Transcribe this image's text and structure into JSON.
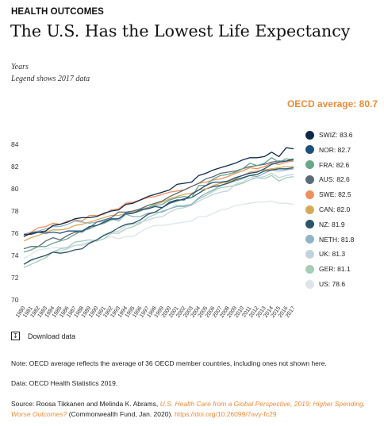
{
  "header": {
    "kicker": "HEALTH OUTCOMES",
    "title": "The U.S. Has the Lowest Life Expectancy",
    "unit": "Years",
    "legend_note": "Legend shows 2017 data"
  },
  "oecd_label": "OECD average: 80.7",
  "chart_data": {
    "type": "line",
    "title": "The U.S. Has the Lowest Life Expectancy",
    "ylabel": "Years",
    "xlabel": "",
    "ylim": [
      70,
      85
    ],
    "yticks": [
      "84",
      "82",
      "80",
      "78",
      "76",
      "74",
      "72",
      "70"
    ],
    "x": [
      "1980",
      "1981",
      "1982",
      "1983",
      "1984",
      "1985",
      "1986",
      "1987",
      "1988",
      "1989",
      "1990",
      "1991",
      "1992",
      "1993",
      "1994",
      "1995",
      "1996",
      "1997",
      "1998",
      "1999",
      "2000",
      "2001",
      "2002",
      "2003",
      "2004",
      "2005",
      "2006",
      "2007",
      "2008",
      "2009",
      "2010",
      "2011",
      "2012",
      "2013",
      "2014",
      "2015",
      "2016",
      "2017"
    ],
    "grid": false,
    "legend_position": "right",
    "series": [
      {
        "name": "SWIZ",
        "label": "SWIZ: 83.6",
        "color": "#0f2a47",
        "values": [
          75.7,
          76.0,
          76.1,
          76.2,
          76.7,
          76.8,
          77.0,
          77.3,
          77.4,
          77.4,
          77.5,
          77.8,
          78.0,
          78.1,
          78.6,
          78.7,
          79.0,
          79.3,
          79.5,
          79.7,
          79.9,
          80.4,
          80.5,
          80.6,
          81.2,
          81.4,
          81.7,
          81.9,
          82.1,
          82.3,
          82.6,
          82.8,
          82.8,
          82.9,
          83.3,
          82.9,
          83.7,
          83.6
        ]
      },
      {
        "name": "NOR",
        "label": "NOR: 82.7",
        "color": "#1e4f7b",
        "values": [
          75.9,
          75.9,
          76.1,
          76.0,
          76.1,
          76.0,
          76.2,
          76.2,
          76.2,
          76.6,
          76.7,
          77.0,
          77.3,
          77.3,
          77.8,
          77.8,
          78.1,
          78.2,
          78.4,
          78.3,
          78.8,
          79.0,
          79.0,
          79.5,
          79.9,
          80.3,
          80.6,
          80.6,
          80.7,
          81.0,
          81.2,
          81.4,
          81.5,
          81.8,
          82.2,
          82.4,
          82.5,
          82.7
        ]
      },
      {
        "name": "FRA",
        "label": "FRA: 82.6",
        "color": "#6aa688",
        "values": [
          74.3,
          74.5,
          74.8,
          74.8,
          75.1,
          75.3,
          75.5,
          75.9,
          76.2,
          76.4,
          76.7,
          76.9,
          77.2,
          77.3,
          77.7,
          77.8,
          78.0,
          78.3,
          78.5,
          78.6,
          79.0,
          79.2,
          79.3,
          79.2,
          80.3,
          80.3,
          80.9,
          81.2,
          81.3,
          81.5,
          81.8,
          82.3,
          82.1,
          82.3,
          82.8,
          82.4,
          82.7,
          82.6
        ]
      },
      {
        "name": "AUS",
        "label": "AUS: 82.6",
        "color": "#5c6b7a",
        "values": [
          74.6,
          74.8,
          74.8,
          75.3,
          75.6,
          75.4,
          75.8,
          76.1,
          76.1,
          76.5,
          77.0,
          77.2,
          77.4,
          77.9,
          77.9,
          78.0,
          78.2,
          78.5,
          78.7,
          78.9,
          79.3,
          79.6,
          79.9,
          80.2,
          80.5,
          80.9,
          81.1,
          81.4,
          81.5,
          81.6,
          81.8,
          82.0,
          82.1,
          82.2,
          82.4,
          82.5,
          82.5,
          82.6
        ]
      },
      {
        "name": "SWE",
        "label": "SWE: 82.5",
        "color": "#ef8f5e",
        "values": [
          75.8,
          76.1,
          76.5,
          76.6,
          76.9,
          76.8,
          77.1,
          77.2,
          77.1,
          77.6,
          77.6,
          77.7,
          78.1,
          78.2,
          78.7,
          78.8,
          79.0,
          79.2,
          79.3,
          79.5,
          79.7,
          79.8,
          79.9,
          80.2,
          80.5,
          80.6,
          80.8,
          80.9,
          81.1,
          81.4,
          81.6,
          81.9,
          81.8,
          82.0,
          82.3,
          82.2,
          82.4,
          82.5
        ]
      },
      {
        "name": "CAN",
        "label": "CAN: 82.0",
        "color": "#d6a959",
        "values": [
          75.3,
          75.6,
          75.8,
          76.1,
          76.3,
          76.3,
          76.4,
          76.7,
          76.8,
          77.0,
          77.2,
          77.4,
          77.6,
          77.6,
          77.8,
          77.9,
          78.2,
          78.3,
          78.6,
          78.8,
          79.1,
          79.3,
          79.5,
          79.6,
          79.9,
          80.0,
          80.3,
          80.5,
          80.6,
          80.9,
          81.2,
          81.5,
          81.6,
          81.7,
          81.8,
          81.9,
          82.0,
          82.0
        ]
      },
      {
        "name": "NZ",
        "label": "NZ: 81.9",
        "color": "#2c5466",
        "values": [
          73.2,
          73.6,
          73.8,
          74.0,
          74.3,
          74.2,
          74.3,
          74.5,
          74.6,
          75.1,
          75.4,
          75.8,
          76.1,
          76.5,
          76.8,
          76.9,
          77.2,
          77.7,
          77.9,
          78.3,
          78.7,
          78.9,
          79.1,
          79.2,
          79.6,
          80.0,
          80.2,
          80.3,
          80.5,
          80.8,
          81.0,
          81.2,
          81.3,
          81.6,
          81.7,
          81.8,
          81.8,
          81.9
        ]
      },
      {
        "name": "NETH",
        "label": "NETH: 81.8",
        "color": "#8fb3c8",
        "values": [
          75.9,
          76.1,
          76.2,
          76.4,
          76.6,
          76.6,
          76.8,
          77.1,
          77.0,
          76.9,
          77.0,
          77.1,
          77.3,
          77.1,
          77.7,
          77.5,
          77.5,
          77.8,
          77.9,
          77.9,
          78.2,
          78.4,
          78.4,
          78.6,
          79.2,
          79.6,
          79.9,
          80.3,
          80.5,
          80.7,
          80.9,
          81.2,
          81.1,
          81.4,
          81.7,
          81.6,
          81.7,
          81.8
        ]
      },
      {
        "name": "UK",
        "label": "UK: 81.3",
        "color": "#c3d3dc",
        "values": [
          73.2,
          73.5,
          73.8,
          74.0,
          74.3,
          74.4,
          74.6,
          74.9,
          75.0,
          75.2,
          75.4,
          75.9,
          76.1,
          76.2,
          76.7,
          76.8,
          77.0,
          77.2,
          77.4,
          77.5,
          77.9,
          78.2,
          78.3,
          78.5,
          78.9,
          79.2,
          79.5,
          79.7,
          79.8,
          80.4,
          80.6,
          81.0,
          81.0,
          81.1,
          81.4,
          81.0,
          81.2,
          81.3
        ]
      },
      {
        "name": "GER",
        "label": "GER: 81.1",
        "color": "#a5cdb8",
        "values": [
          72.9,
          73.2,
          73.5,
          73.8,
          74.3,
          74.6,
          74.7,
          75.2,
          75.3,
          75.4,
          75.3,
          75.5,
          76.0,
          76.0,
          76.4,
          76.6,
          76.9,
          77.4,
          77.7,
          78.0,
          78.2,
          78.5,
          78.5,
          78.6,
          79.1,
          79.4,
          79.8,
          80.1,
          80.2,
          80.3,
          80.5,
          80.8,
          81.0,
          80.9,
          81.2,
          80.7,
          81.0,
          81.1
        ]
      },
      {
        "name": "US",
        "label": "US: 78.6",
        "color": "#dde5e9",
        "values": [
          73.7,
          74.1,
          74.5,
          74.6,
          74.7,
          74.7,
          74.7,
          74.9,
          74.9,
          75.1,
          75.3,
          75.5,
          75.7,
          75.5,
          75.7,
          75.7,
          76.1,
          76.5,
          76.7,
          76.7,
          76.8,
          76.9,
          77.0,
          77.1,
          77.5,
          77.5,
          77.8,
          78.1,
          78.2,
          78.5,
          78.6,
          78.7,
          78.8,
          78.8,
          78.9,
          78.7,
          78.7,
          78.6
        ]
      }
    ]
  },
  "download_label": "Download data",
  "notes": {
    "note": "Note: OECD average reflects the average of 36 OECD member countries, including ones not shown here.",
    "data": "Data: OECD Health Statistics 2019.",
    "source_prefix": "Source: Roosa Tikkanen and Melinda K. Abrams,",
    "source_title": "U.S. Health Care from a Global Perspective, 2019: Higher Spending, Worse Outcomes?",
    "source_mid": "(Commonwealth Fund, Jan. 2020).",
    "source_doi": "https://doi.org/10.26099/7avy-fc29"
  },
  "icons": {
    "download": "download-icon"
  }
}
